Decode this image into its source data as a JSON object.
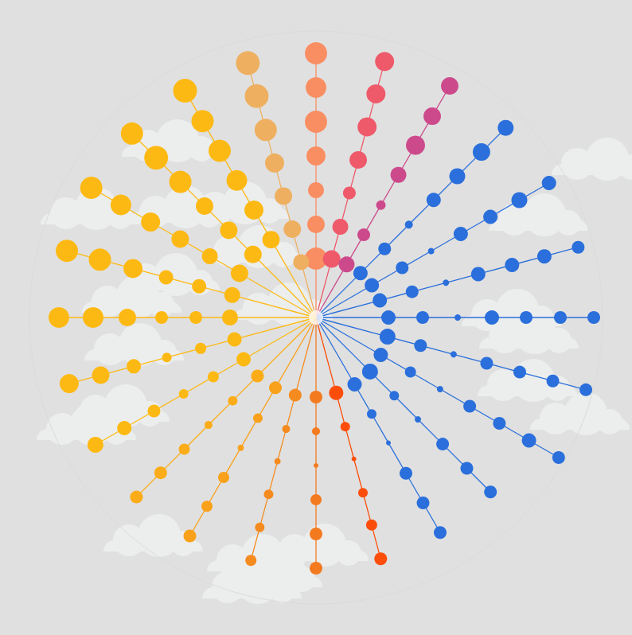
{
  "chart_data": {
    "type": "radial_line",
    "xlim": [
      0,
      360
    ],
    "ylim": [
      0,
      360
    ],
    "xticks": [],
    "yticks": [],
    "tick_labels": false,
    "grid": false,
    "marker": "circle",
    "series": [
      {
        "color": "#f98e63",
        "angle": 0,
        "values": [
          74,
          117,
          160,
          203,
          246,
          289,
          332
        ],
        "sizes": [
          28,
          22,
          20,
          24,
          28,
          26,
          28
        ]
      },
      {
        "color": "#ee5a6a",
        "angle": 15,
        "values": [
          76,
          118,
          162,
          205,
          248,
          291,
          333
        ],
        "sizes": [
          22,
          20,
          16,
          22,
          24,
          24,
          24
        ]
      },
      {
        "color": "#cc4a8c",
        "angle": 30,
        "values": [
          77,
          120,
          163,
          207,
          250,
          292,
          336
        ],
        "sizes": [
          20,
          16,
          12,
          20,
          24,
          22,
          22
        ]
      },
      {
        "color": "#2a6fdb",
        "angle": 45,
        "values": [
          79,
          122,
          165,
          209,
          251,
          294,
          337
        ],
        "sizes": [
          18,
          16,
          10,
          18,
          20,
          22,
          20
        ]
      },
      {
        "color": "#2a6fdb",
        "angle": 60,
        "values": [
          81,
          125,
          167,
          210,
          253,
          295,
          338
        ],
        "sizes": [
          18,
          16,
          8,
          18,
          18,
          20,
          18
        ]
      },
      {
        "color": "#2a6fdb",
        "angle": 75,
        "values": [
          83,
          125,
          169,
          211,
          255,
          297,
          341
        ],
        "sizes": [
          18,
          16,
          8,
          18,
          18,
          18,
          16
        ]
      },
      {
        "color": "#2a6fdb",
        "angle": 90,
        "values": [
          91,
          134,
          178,
          221,
          264,
          307,
          349
        ],
        "sizes": [
          18,
          16,
          8,
          18,
          16,
          16,
          16
        ]
      },
      {
        "color": "#2a6fdb",
        "angle": 105,
        "values": [
          93,
          136,
          179,
          222,
          265,
          308,
          351
        ],
        "sizes": [
          20,
          16,
          8,
          16,
          16,
          16,
          16
        ]
      },
      {
        "color": "#2a6fdb",
        "angle": 120,
        "values": [
          94,
          137,
          180,
          223,
          266,
          309,
          352
        ],
        "sizes": [
          18,
          14,
          8,
          16,
          16,
          18,
          16
        ]
      },
      {
        "color": "#2a6fdb",
        "angle": 135,
        "values": [
          96,
          139,
          181,
          225,
          268,
          310
        ],
        "sizes": [
          20,
          12,
          8,
          16,
          16,
          16
        ]
      },
      {
        "color": "#2a6fdb",
        "angle": 150,
        "values": [
          97,
          140,
          182,
          226,
          269,
          312
        ],
        "sizes": [
          18,
          12,
          6,
          16,
          16,
          16
        ]
      },
      {
        "color": "#fc4e0a",
        "angle": 165,
        "values": [
          98,
          142,
          184,
          228,
          270,
          314
        ],
        "sizes": [
          18,
          12,
          6,
          12,
          14,
          16
        ]
      },
      {
        "color": "#f47a1f",
        "angle": 180,
        "values": [
          100,
          143,
          186,
          229,
          272,
          315
        ],
        "sizes": [
          16,
          10,
          6,
          14,
          16,
          16
        ]
      },
      {
        "color": "#f58b1f",
        "angle": 195,
        "values": [
          101,
          145,
          187,
          230,
          273,
          316
        ],
        "sizes": [
          16,
          10,
          8,
          12,
          12,
          14
        ]
      },
      {
        "color": "#f9a11b",
        "angle": 210,
        "values": [
          102,
          146,
          189,
          232,
          274,
          317
        ],
        "sizes": [
          16,
          12,
          8,
          14,
          14,
          16
        ]
      },
      {
        "color": "#fbac18",
        "angle": 225,
        "values": [
          104,
          148,
          191,
          234,
          276,
          319
        ],
        "sizes": [
          16,
          12,
          10,
          14,
          16,
          16
        ]
      },
      {
        "color": "#fdb913",
        "angle": 240,
        "values": [
          105,
          149,
          192,
          235,
          278,
          320
        ],
        "sizes": [
          18,
          14,
          12,
          16,
          18,
          20
        ]
      },
      {
        "color": "#fdb913",
        "angle": 255,
        "values": [
          106,
          150,
          194,
          237,
          280,
          321
        ],
        "sizes": [
          18,
          14,
          12,
          18,
          22,
          24
        ]
      },
      {
        "color": "#fdb913",
        "angle": 270,
        "values": [
          108,
          151,
          194,
          237,
          280,
          323
        ],
        "sizes": [
          20,
          16,
          16,
          22,
          26,
          26
        ]
      },
      {
        "color": "#fdb913",
        "angle": 285,
        "values": [
          109,
          152,
          195,
          238,
          281,
          324
        ],
        "sizes": [
          20,
          18,
          18,
          24,
          28,
          28
        ]
      },
      {
        "color": "#fdb913",
        "angle": 300,
        "values": [
          111,
          154,
          197,
          240,
          283,
          326
        ],
        "sizes": [
          22,
          20,
          22,
          24,
          26,
          28
        ]
      },
      {
        "color": "#fdb913",
        "angle": 315,
        "values": [
          112,
          155,
          198,
          241,
          284,
          327
        ],
        "sizes": [
          22,
          22,
          22,
          28,
          30,
          28
        ]
      },
      {
        "color": "#fdb913",
        "angle": 330,
        "values": [
          113,
          156,
          199,
          242,
          285,
          329
        ],
        "sizes": [
          22,
          24,
          26,
          28,
          28,
          30
        ]
      },
      {
        "color": "#eeb060",
        "angle": 345,
        "values": [
          72,
          115,
          158,
          201,
          244,
          288,
          331
        ],
        "sizes": [
          20,
          22,
          22,
          24,
          28,
          30,
          30
        ]
      }
    ]
  }
}
